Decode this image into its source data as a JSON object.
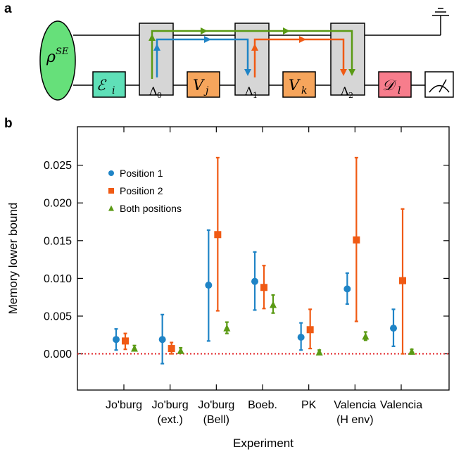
{
  "panel_a": {
    "label": "a",
    "rho": "ρ",
    "rho_sup": "SE",
    "ops": [
      {
        "main": "ℰ",
        "sub": "i",
        "color": "#5fe0b8"
      },
      {
        "main": "V",
        "sub": "j",
        "color": "#f6a55c"
      },
      {
        "main": "V",
        "sub": "k",
        "color": "#f6a55c"
      },
      {
        "main": "𝒟",
        "sub": "l",
        "color": "#f77d8c"
      }
    ],
    "lambdas": [
      {
        "main": "Λ",
        "sub": "0"
      },
      {
        "main": "Λ",
        "sub": "1"
      },
      {
        "main": "Λ",
        "sub": "2"
      }
    ],
    "colors": {
      "ellipse": "#66e07a",
      "process_box": "#d6d6d6",
      "blue": "#1f84c6",
      "orange": "#f05a14",
      "green": "#5a9a14"
    }
  },
  "chart_data": {
    "panel_label": "b",
    "type": "scatter",
    "xlabel": "Experiment",
    "ylabel": "Memory lower bound",
    "ylim": [
      -0.0048,
      0.0301
    ],
    "y_ticks": [
      "0.000",
      "0.005",
      "0.010",
      "0.015",
      "0.020",
      "0.025"
    ],
    "y_tick_values": [
      0,
      0.005,
      0.01,
      0.015,
      0.02,
      0.025
    ],
    "categories": [
      [
        "Jo'burg"
      ],
      [
        "Jo'burg",
        "(ext.)"
      ],
      [
        "Jo'burg",
        "(Bell)"
      ],
      [
        "Boeb."
      ],
      [
        "PK"
      ],
      [
        "Valencia",
        "(H env)"
      ],
      [
        "Valencia"
      ]
    ],
    "reference_line": {
      "y": 0,
      "color": "#e0191c",
      "style": "dotted"
    },
    "legend_position": "upper-left",
    "series": [
      {
        "name": "Position 1",
        "marker": "circle",
        "color": "#1f84c6",
        "values": [
          0.0019,
          0.0019,
          0.0091,
          0.0096,
          0.0022,
          0.0086,
          0.0034
        ],
        "lower": [
          0.0005,
          -0.0013,
          0.0017,
          0.0058,
          0.0005,
          0.0066,
          0.001
        ],
        "upper": [
          0.0033,
          0.0052,
          0.0164,
          0.0135,
          0.0041,
          0.0107,
          0.0059
        ]
      },
      {
        "name": "Position 2",
        "marker": "square",
        "color": "#f05a14",
        "values": [
          0.0017,
          0.0007,
          0.0158,
          0.0088,
          0.0032,
          0.0151,
          0.0097
        ],
        "lower": [
          0.0006,
          0.0,
          0.0057,
          0.006,
          0.0007,
          0.0043,
          0.0
        ],
        "upper": [
          0.0027,
          0.0015,
          0.026,
          0.0117,
          0.0059,
          0.026,
          0.0192
        ]
      },
      {
        "name": "Both positions",
        "marker": "triangle",
        "color": "#5a9a14",
        "values": [
          0.0007,
          0.0004,
          0.0034,
          0.0065,
          0.0002,
          0.0023,
          0.0003
        ],
        "lower": [
          0.0004,
          0.0002,
          0.0027,
          0.0054,
          0.0,
          0.0018,
          0.0
        ],
        "upper": [
          0.0011,
          0.0008,
          0.0042,
          0.0078,
          0.0005,
          0.0029,
          0.0006
        ]
      }
    ]
  }
}
